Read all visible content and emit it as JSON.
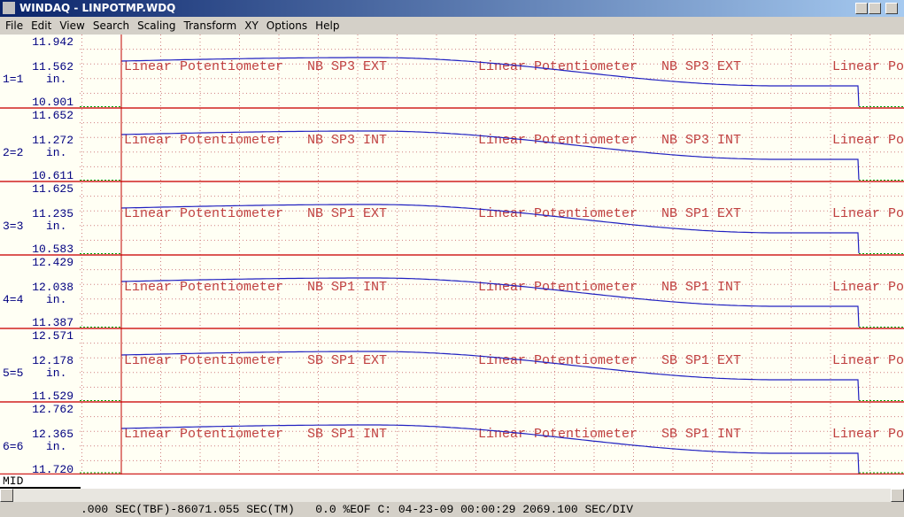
{
  "title_bar": {
    "title": "WINDAQ - LINPOTMP.WDQ"
  },
  "menu": [
    "File",
    "Edit",
    "View",
    "Search",
    "Scaling",
    "Transform",
    "XY",
    "Options",
    "Help"
  ],
  "channels": [
    {
      "top": "11.942",
      "mid": "11.562",
      "label": "1=1",
      "units": "in.",
      "bottom": "10.901",
      "annotation": "Linear Potentiometer   NB SP3 EXT"
    },
    {
      "top": "11.652",
      "mid": "11.272",
      "label": "2=2",
      "units": "in.",
      "bottom": "10.611",
      "annotation": "Linear Potentiometer   NB SP3 INT"
    },
    {
      "top": "11.625",
      "mid": "11.235",
      "label": "3=3",
      "units": "in.",
      "bottom": "10.583",
      "annotation": "Linear Potentiometer   NB SP1 EXT"
    },
    {
      "top": "12.429",
      "mid": "12.038",
      "label": "4=4",
      "units": "in.",
      "bottom": "11.387",
      "annotation": "Linear Potentiometer   NB SP1 INT"
    },
    {
      "top": "12.571",
      "mid": "12.178",
      "label": "5=5",
      "units": "in.",
      "bottom": "11.529",
      "annotation": "Linear Potentiometer   SB SP1 EXT"
    },
    {
      "top": "12.762",
      "mid": "12.365",
      "label": "6=6",
      "units": "in.",
      "bottom": "11.720",
      "annotation": "Linear Potentiometer   SB SP1 INT"
    }
  ],
  "status_bar": {
    "mode": "MID",
    "text": ".000 SEC(TBF)-86071.055 SEC(TM)   0.0 %EOF C: 04-23-09 00:00:29 2069.100 SEC/DIV"
  }
}
